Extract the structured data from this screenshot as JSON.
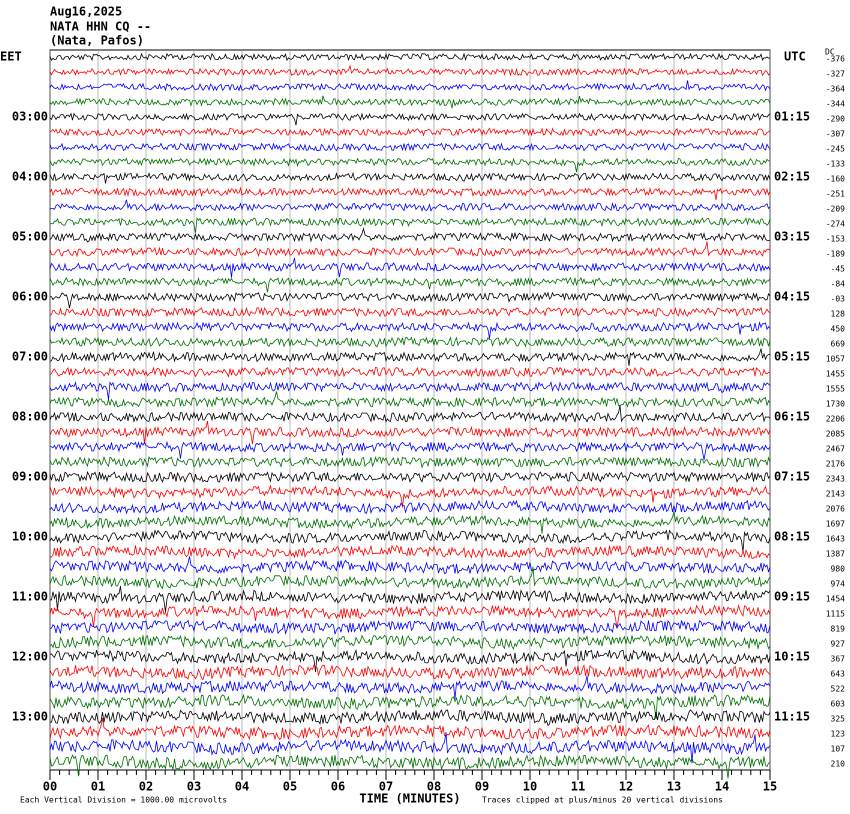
{
  "chart_data": {
    "type": "helicorder",
    "header": [
      "Aug16,2025",
      "NATA HHN CQ --",
      "(Nata, Pafos)"
    ],
    "left_zone": "EET",
    "right_zone": "UTC",
    "offset_title": "DC",
    "left_labels": [
      "03:00",
      "04:00",
      "05:00",
      "06:00",
      "07:00",
      "08:00",
      "09:00",
      "10:00",
      "11:00",
      "12:00",
      "13:00"
    ],
    "right_labels": [
      "01:15",
      "02:15",
      "03:15",
      "04:15",
      "05:15",
      "06:15",
      "07:15",
      "08:15",
      "09:15",
      "10:15",
      "11:15"
    ],
    "offsets": [
      "-376",
      "-327",
      "-364",
      "-344",
      "-290",
      "-307",
      "-245",
      "-133",
      "-160",
      "-251",
      "-209",
      "-274",
      "-153",
      "-189",
      "-45",
      "-84",
      "-03",
      "128",
      "450",
      "669",
      "1057",
      "1455",
      "1555",
      "1730",
      "2206",
      "2085",
      "2467",
      "2176",
      "2343",
      "2143",
      "2076",
      "1697",
      "1643",
      "1387",
      "980",
      "974",
      "1454",
      "1115",
      "819",
      "927",
      "367",
      "643",
      "522",
      "603",
      "325",
      "123",
      "107",
      "210"
    ],
    "trace_colors": [
      "#000000",
      "#ff0000",
      "#0000ff",
      "#007000"
    ],
    "xlim": [
      0,
      15
    ],
    "xticks": [
      {
        "value": 0,
        "label": "00"
      },
      {
        "value": 1,
        "label": "01"
      },
      {
        "value": 2,
        "label": "02"
      },
      {
        "value": 3,
        "label": "03"
      },
      {
        "value": 4,
        "label": "04"
      },
      {
        "value": 5,
        "label": "05"
      },
      {
        "value": 6,
        "label": "06"
      },
      {
        "value": 7,
        "label": "07"
      },
      {
        "value": 8,
        "label": "08"
      },
      {
        "value": 9,
        "label": "09"
      },
      {
        "value": 10,
        "label": "10"
      },
      {
        "value": 11,
        "label": "11"
      },
      {
        "value": 12,
        "label": "12"
      },
      {
        "value": 13,
        "label": "13"
      },
      {
        "value": 14,
        "label": "14"
      },
      {
        "value": 15,
        "label": "15"
      }
    ],
    "xlabel": "TIME (MINUTES)",
    "scale_note": "Each Vertical Division = 1000.00 microvolts",
    "clip_note": "Traces clipped at plus/minus 20 vertical divisions"
  }
}
